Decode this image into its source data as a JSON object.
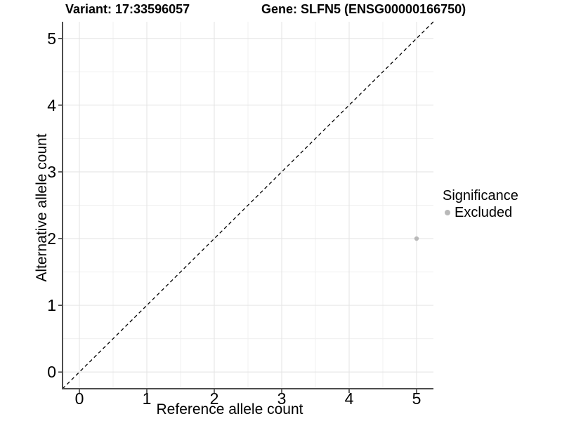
{
  "chart_data": {
    "type": "scatter",
    "titles": [
      "Variant: 17:33596057",
      "Gene: SLFN5 (ENSG00000166750)"
    ],
    "xlabel": "Reference allele count",
    "ylabel": "Alternative allele count",
    "xlim": [
      -0.25,
      5.25
    ],
    "ylim": [
      -0.25,
      5.25
    ],
    "x_ticks": [
      0,
      1,
      2,
      3,
      4,
      5
    ],
    "y_ticks": [
      0,
      1,
      2,
      3,
      4,
      5
    ],
    "x_minor_ticks": [
      0.5,
      1.5,
      2.5,
      3.5,
      4.5
    ],
    "y_minor_ticks": [
      0.5,
      1.5,
      2.5,
      3.5,
      4.5
    ],
    "grid": "major+minor",
    "reference_line": {
      "slope": 1,
      "intercept": 0,
      "style": "dashed"
    },
    "series": [
      {
        "name": "Excluded",
        "marker": "circle",
        "color": "#b9b9b9",
        "points": [
          {
            "x": 5,
            "y": 2
          }
        ]
      }
    ],
    "legend": {
      "title": "Significance",
      "position": "right",
      "entries": [
        {
          "label": "Excluded",
          "color": "#b9b9b9"
        }
      ]
    }
  },
  "colors": {
    "background": "#ffffff",
    "grid_major": "#e5e5e5",
    "grid_minor": "#f0f0f0",
    "axis_line": "#4d4d4d",
    "tick_mark": "#333333",
    "reference_line": "#000000",
    "text": "#000000"
  }
}
